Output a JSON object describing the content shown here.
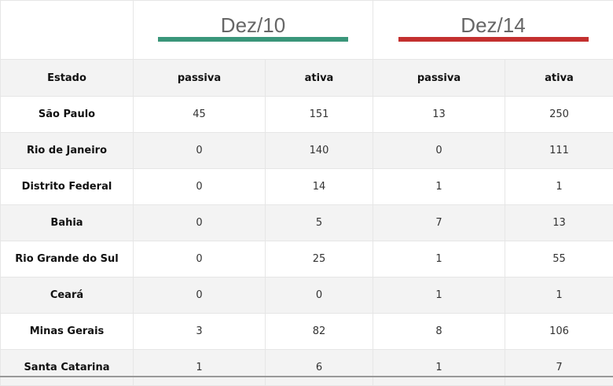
{
  "groups": [
    {
      "title": "Dez/10",
      "color": "#3a967a"
    },
    {
      "title": "Dez/14",
      "color": "#c3302f"
    }
  ],
  "columns": [
    "Estado",
    "passiva",
    "ativa",
    "passiva",
    "ativa"
  ],
  "rows": [
    [
      "São Paulo",
      "45",
      "151",
      "13",
      "250"
    ],
    [
      "Rio de Janeiro",
      "0",
      "140",
      "0",
      "111"
    ],
    [
      "Distrito Federal",
      "0",
      "14",
      "1",
      "1"
    ],
    [
      "Bahia",
      "0",
      "5",
      "7",
      "13"
    ],
    [
      "Rio Grande do Sul",
      "0",
      "25",
      "1",
      "55"
    ],
    [
      "Ceará",
      "0",
      "0",
      "1",
      "1"
    ],
    [
      "Minas Gerais",
      "3",
      "82",
      "8",
      "106"
    ],
    [
      "Santa Catarina",
      "1",
      "6",
      "1",
      "7"
    ]
  ]
}
